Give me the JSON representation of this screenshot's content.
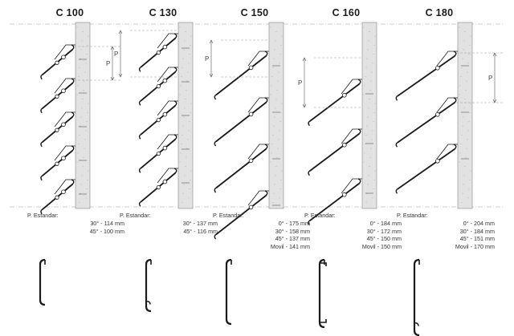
{
  "panels": [
    {
      "id": "c100",
      "title": "C 100",
      "standard_label": "P. Estandar:",
      "dimension_mark": "P",
      "specs": [
        "30° - 114 mm",
        "45° - 100 mm"
      ]
    },
    {
      "id": "c130",
      "title": "C 130",
      "standard_label": "P. Estandar:",
      "dimension_mark": "P",
      "specs": [
        "30° - 137 mm",
        "45° - 116 mm"
      ]
    },
    {
      "id": "c150",
      "title": "C 150",
      "standard_label": "P. Estandar:",
      "dimension_mark": "P",
      "specs": [
        "0° - 175 mm",
        "30° - 158 mm",
        "45° - 137 mm",
        "Movil - 141 mm"
      ]
    },
    {
      "id": "c160",
      "title": "C 160",
      "standard_label": "P. Estandar:",
      "dimension_mark": "P",
      "specs": [
        "0° - 184 mm",
        "30° - 172 mm",
        "45° - 150 mm",
        "Movil - 150 mm"
      ]
    },
    {
      "id": "c180",
      "title": "C 180",
      "standard_label": "P. Estandar:",
      "dimension_mark": "P",
      "specs": [
        "0° - 204 mm",
        "30° - 184 mm",
        "45° - 151 mm",
        "Movil - 170 mm"
      ]
    }
  ],
  "colors": {
    "line": "#1a1a1a",
    "wall": "#e2e2e2",
    "guide": "#9a9a9a"
  }
}
